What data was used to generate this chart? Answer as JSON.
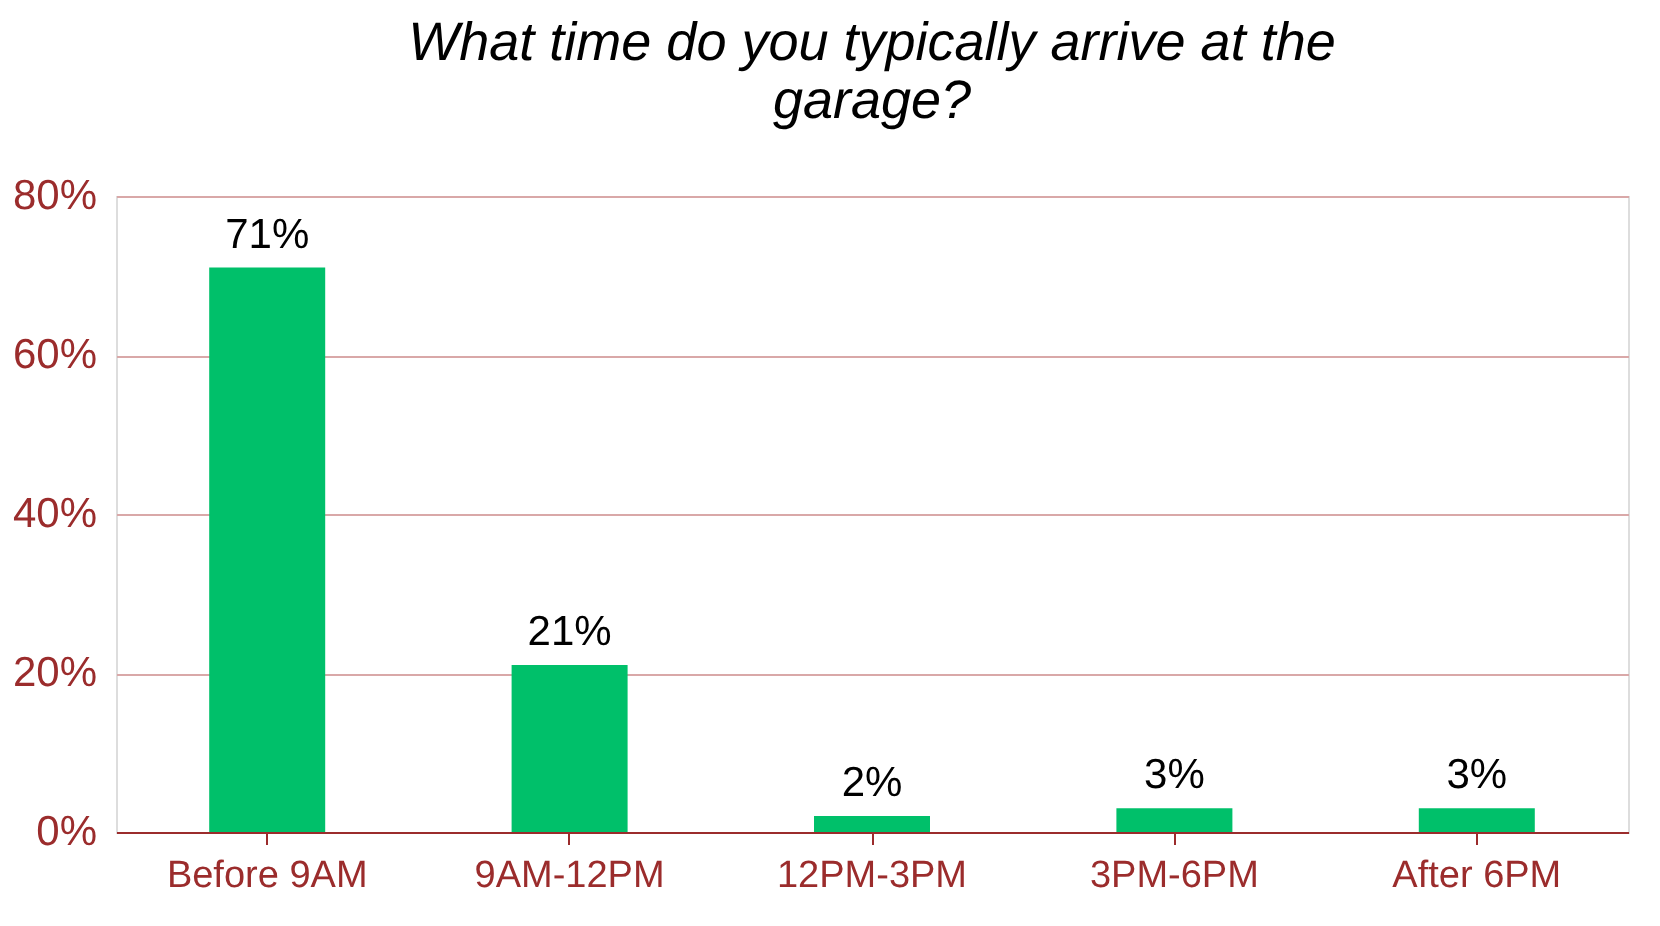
{
  "chart_data": {
    "type": "bar",
    "title": [
      "What time do you typically arrive at the",
      "garage?"
    ],
    "categories": [
      "Before 9AM",
      "9AM-12PM",
      "12PM-3PM",
      "3PM-6PM",
      "After 6PM"
    ],
    "values": [
      71,
      21,
      2,
      3,
      3
    ],
    "value_labels": [
      "71%",
      "21%",
      "2%",
      "3%",
      "3%"
    ],
    "color": "#00c06a",
    "ylim": [
      0,
      80
    ],
    "yticks": [
      {
        "value": 0,
        "label": "0%"
      },
      {
        "value": 20,
        "label": "20%"
      },
      {
        "value": 40,
        "label": "40%"
      },
      {
        "value": 60,
        "label": "60%"
      },
      {
        "value": 80,
        "label": "80%"
      }
    ],
    "grid": "y"
  }
}
